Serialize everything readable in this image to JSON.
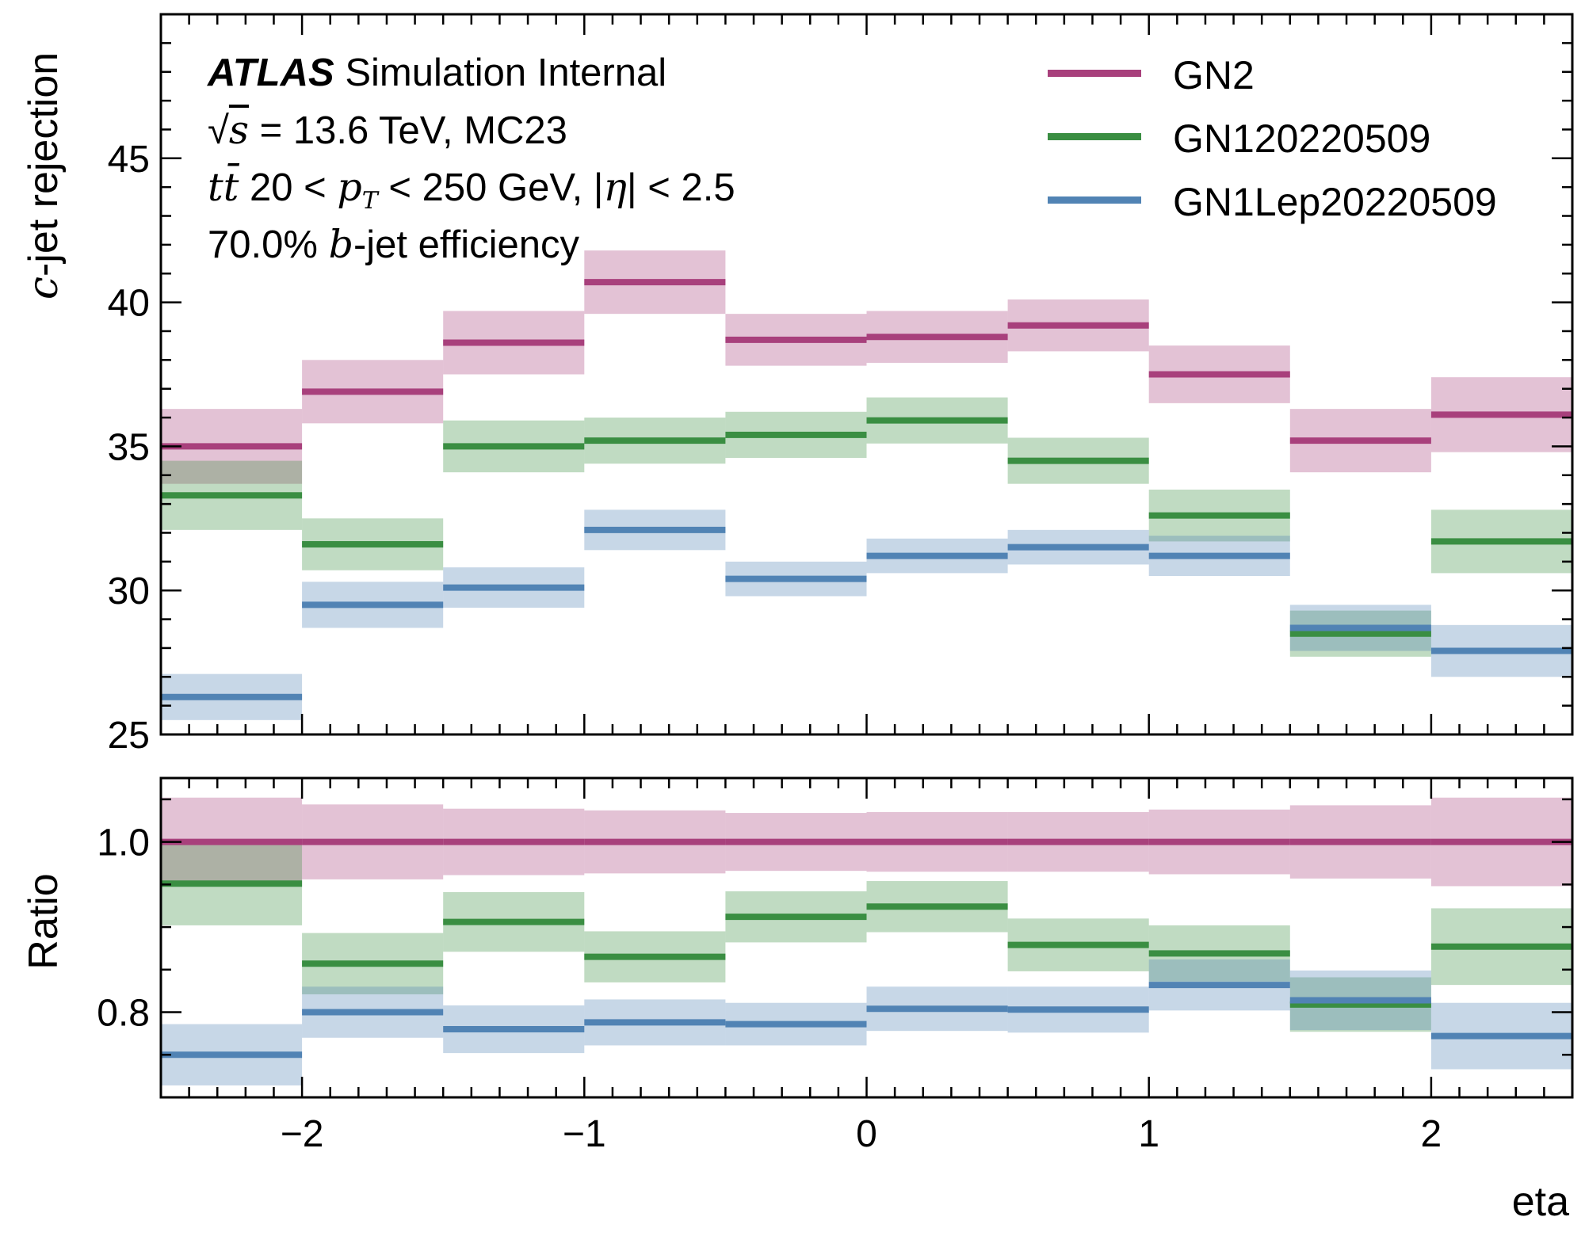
{
  "annotations": {
    "experiment": "ATLAS",
    "status": "Simulation Internal",
    "energy_value": "13.6",
    "energy_unit": "TeV",
    "campaign": "MC23",
    "sample": "tt̄",
    "pt_min": "20",
    "pt_max": "250",
    "pt_unit": "GeV",
    "eta_max": "2.5",
    "wp_value": "70.0%",
    "wp_flavour": "b",
    "wp_suffix": "-jet efficiency"
  },
  "chart_data": [
    {
      "type": "histogram-step",
      "panel": "main",
      "ylabel_flavour": "c",
      "ylabel_suffix": "-jet rejection",
      "bin_edges": [
        -2.5,
        -2.0,
        -1.5,
        -1.0,
        -0.5,
        0.0,
        0.5,
        1.0,
        1.5,
        2.0,
        2.5
      ],
      "xlim": [
        -2.5,
        2.5
      ],
      "ylim": [
        25,
        50
      ],
      "yticks": [
        "25",
        "30",
        "35",
        "40",
        "45"
      ],
      "legend": "top-right",
      "series": [
        {
          "name": "GN2",
          "color": "#a8407c",
          "values": [
            35.0,
            36.9,
            38.6,
            40.7,
            38.7,
            38.8,
            39.2,
            37.5,
            35.2,
            36.1
          ],
          "band": [
            1.3,
            1.1,
            1.1,
            1.1,
            0.9,
            0.9,
            0.9,
            1.0,
            1.1,
            1.3
          ]
        },
        {
          "name": "GN120220509",
          "color": "#3a8e42",
          "values": [
            33.3,
            31.6,
            35.0,
            35.2,
            35.4,
            35.9,
            34.5,
            32.6,
            28.5,
            31.7
          ],
          "band": [
            1.2,
            0.9,
            0.9,
            0.8,
            0.8,
            0.8,
            0.8,
            0.9,
            0.8,
            1.1
          ]
        },
        {
          "name": "GN1Lep20220509",
          "color": "#5183b4",
          "values": [
            26.3,
            29.5,
            30.1,
            32.1,
            30.4,
            31.2,
            31.5,
            31.2,
            28.7,
            27.9
          ],
          "band": [
            0.8,
            0.8,
            0.7,
            0.7,
            0.6,
            0.6,
            0.6,
            0.7,
            0.8,
            0.9
          ]
        }
      ]
    },
    {
      "type": "histogram-step",
      "panel": "ratio",
      "ylabel": "Ratio",
      "xlabel": "eta",
      "bin_edges": [
        -2.5,
        -2.0,
        -1.5,
        -1.0,
        -0.5,
        0.0,
        0.5,
        1.0,
        1.5,
        2.0,
        2.5
      ],
      "xlim": [
        -2.5,
        2.5
      ],
      "xticks": [
        "−2",
        "−1",
        "0",
        "1",
        "2"
      ],
      "ylim": [
        0.7,
        1.075
      ],
      "yticks": [
        "0.8",
        "1.0"
      ],
      "series": [
        {
          "name": "GN2",
          "color": "#a8407c",
          "values": [
            1.0,
            1.0,
            1.0,
            1.0,
            1.0,
            1.0,
            1.0,
            1.0,
            1.0,
            1.0
          ],
          "band": [
            0.052,
            0.044,
            0.039,
            0.037,
            0.034,
            0.035,
            0.035,
            0.038,
            0.043,
            0.052
          ]
        },
        {
          "name": "GN120220509",
          "color": "#3a8e42",
          "values": [
            0.951,
            0.857,
            0.906,
            0.865,
            0.912,
            0.924,
            0.879,
            0.869,
            0.809,
            0.877
          ],
          "band": [
            0.049,
            0.036,
            0.035,
            0.03,
            0.03,
            0.03,
            0.031,
            0.033,
            0.032,
            0.045
          ]
        },
        {
          "name": "GN1Lep20220509",
          "color": "#5183b4",
          "values": [
            0.75,
            0.8,
            0.78,
            0.788,
            0.786,
            0.804,
            0.803,
            0.832,
            0.814,
            0.772
          ],
          "band": [
            0.036,
            0.03,
            0.028,
            0.027,
            0.025,
            0.026,
            0.027,
            0.03,
            0.035,
            0.039
          ]
        }
      ]
    }
  ]
}
